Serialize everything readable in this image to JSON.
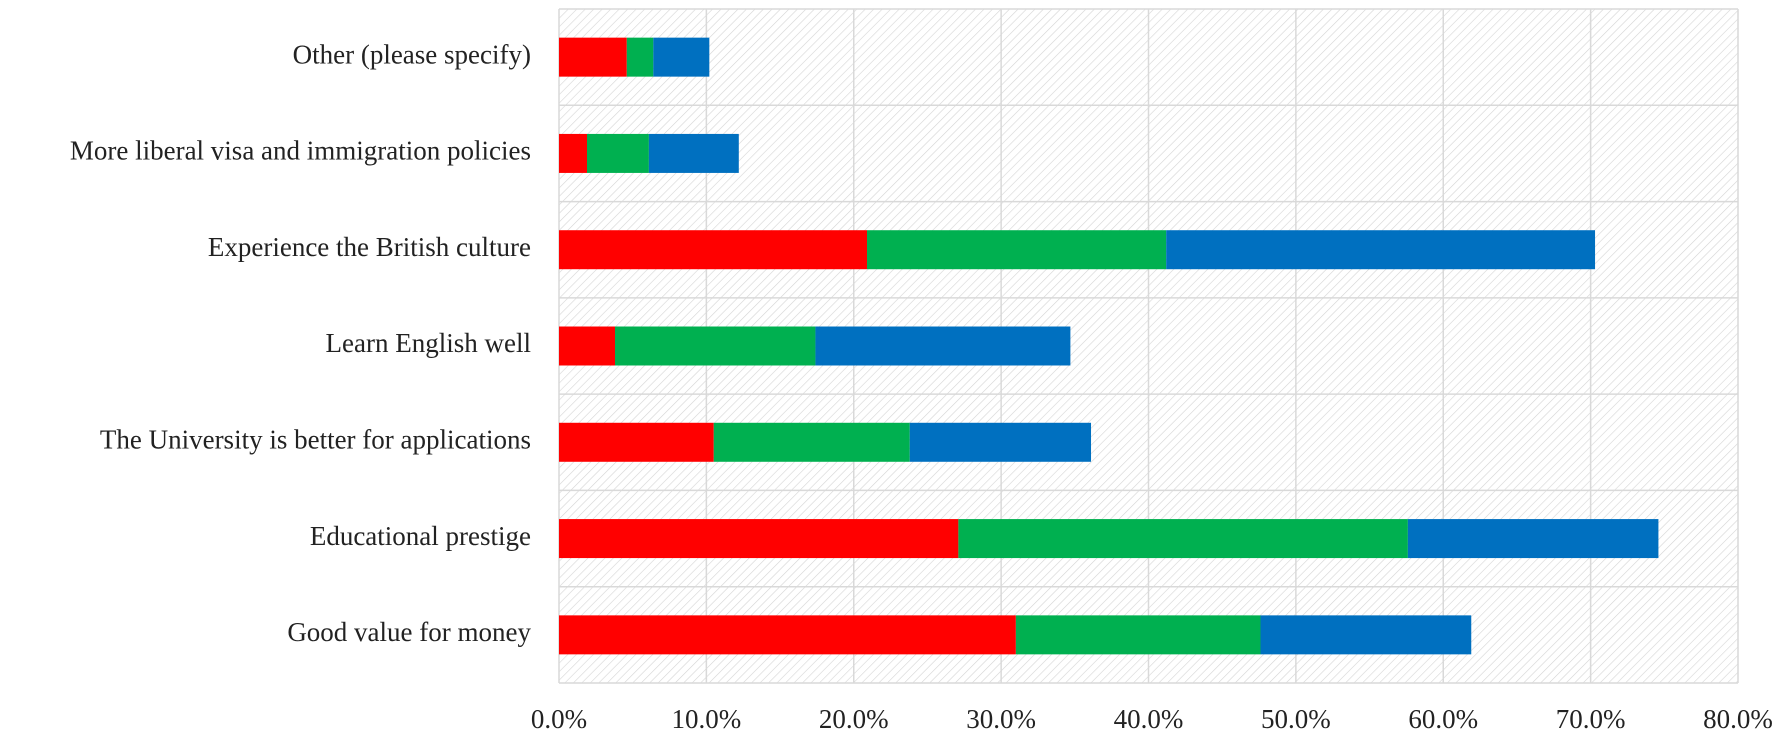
{
  "chart_data": {
    "type": "stacked-bar-horizontal",
    "categories": [
      "Other (please specify)",
      "More liberal visa and immigration policies",
      "Experience the British culture",
      "Learn English well",
      "The University is better for applications",
      "Educational prestige",
      "Good value for money"
    ],
    "series": [
      {
        "color": "#ff0000",
        "values": [
          4.6,
          1.9,
          20.9,
          3.8,
          10.5,
          27.1,
          31.0
        ]
      },
      {
        "color": "#00b050",
        "values": [
          1.8,
          4.2,
          20.3,
          13.6,
          13.3,
          30.5,
          16.6
        ]
      },
      {
        "color": "#0070c0",
        "values": [
          3.8,
          6.1,
          29.1,
          17.3,
          12.3,
          17.0,
          14.3
        ]
      }
    ],
    "xlim": [
      0,
      80
    ],
    "xticks": [
      {
        "value": 0,
        "label": "0.0%"
      },
      {
        "value": 10,
        "label": "10.0%"
      },
      {
        "value": 20,
        "label": "20.0%"
      },
      {
        "value": 30,
        "label": "30.0%"
      },
      {
        "value": 40,
        "label": "40.0%"
      },
      {
        "value": 50,
        "label": "50.0%"
      },
      {
        "value": 60,
        "label": "60.0%"
      },
      {
        "value": 70,
        "label": "70.0%"
      },
      {
        "value": 80,
        "label": "80.0%"
      }
    ],
    "grid": true
  }
}
